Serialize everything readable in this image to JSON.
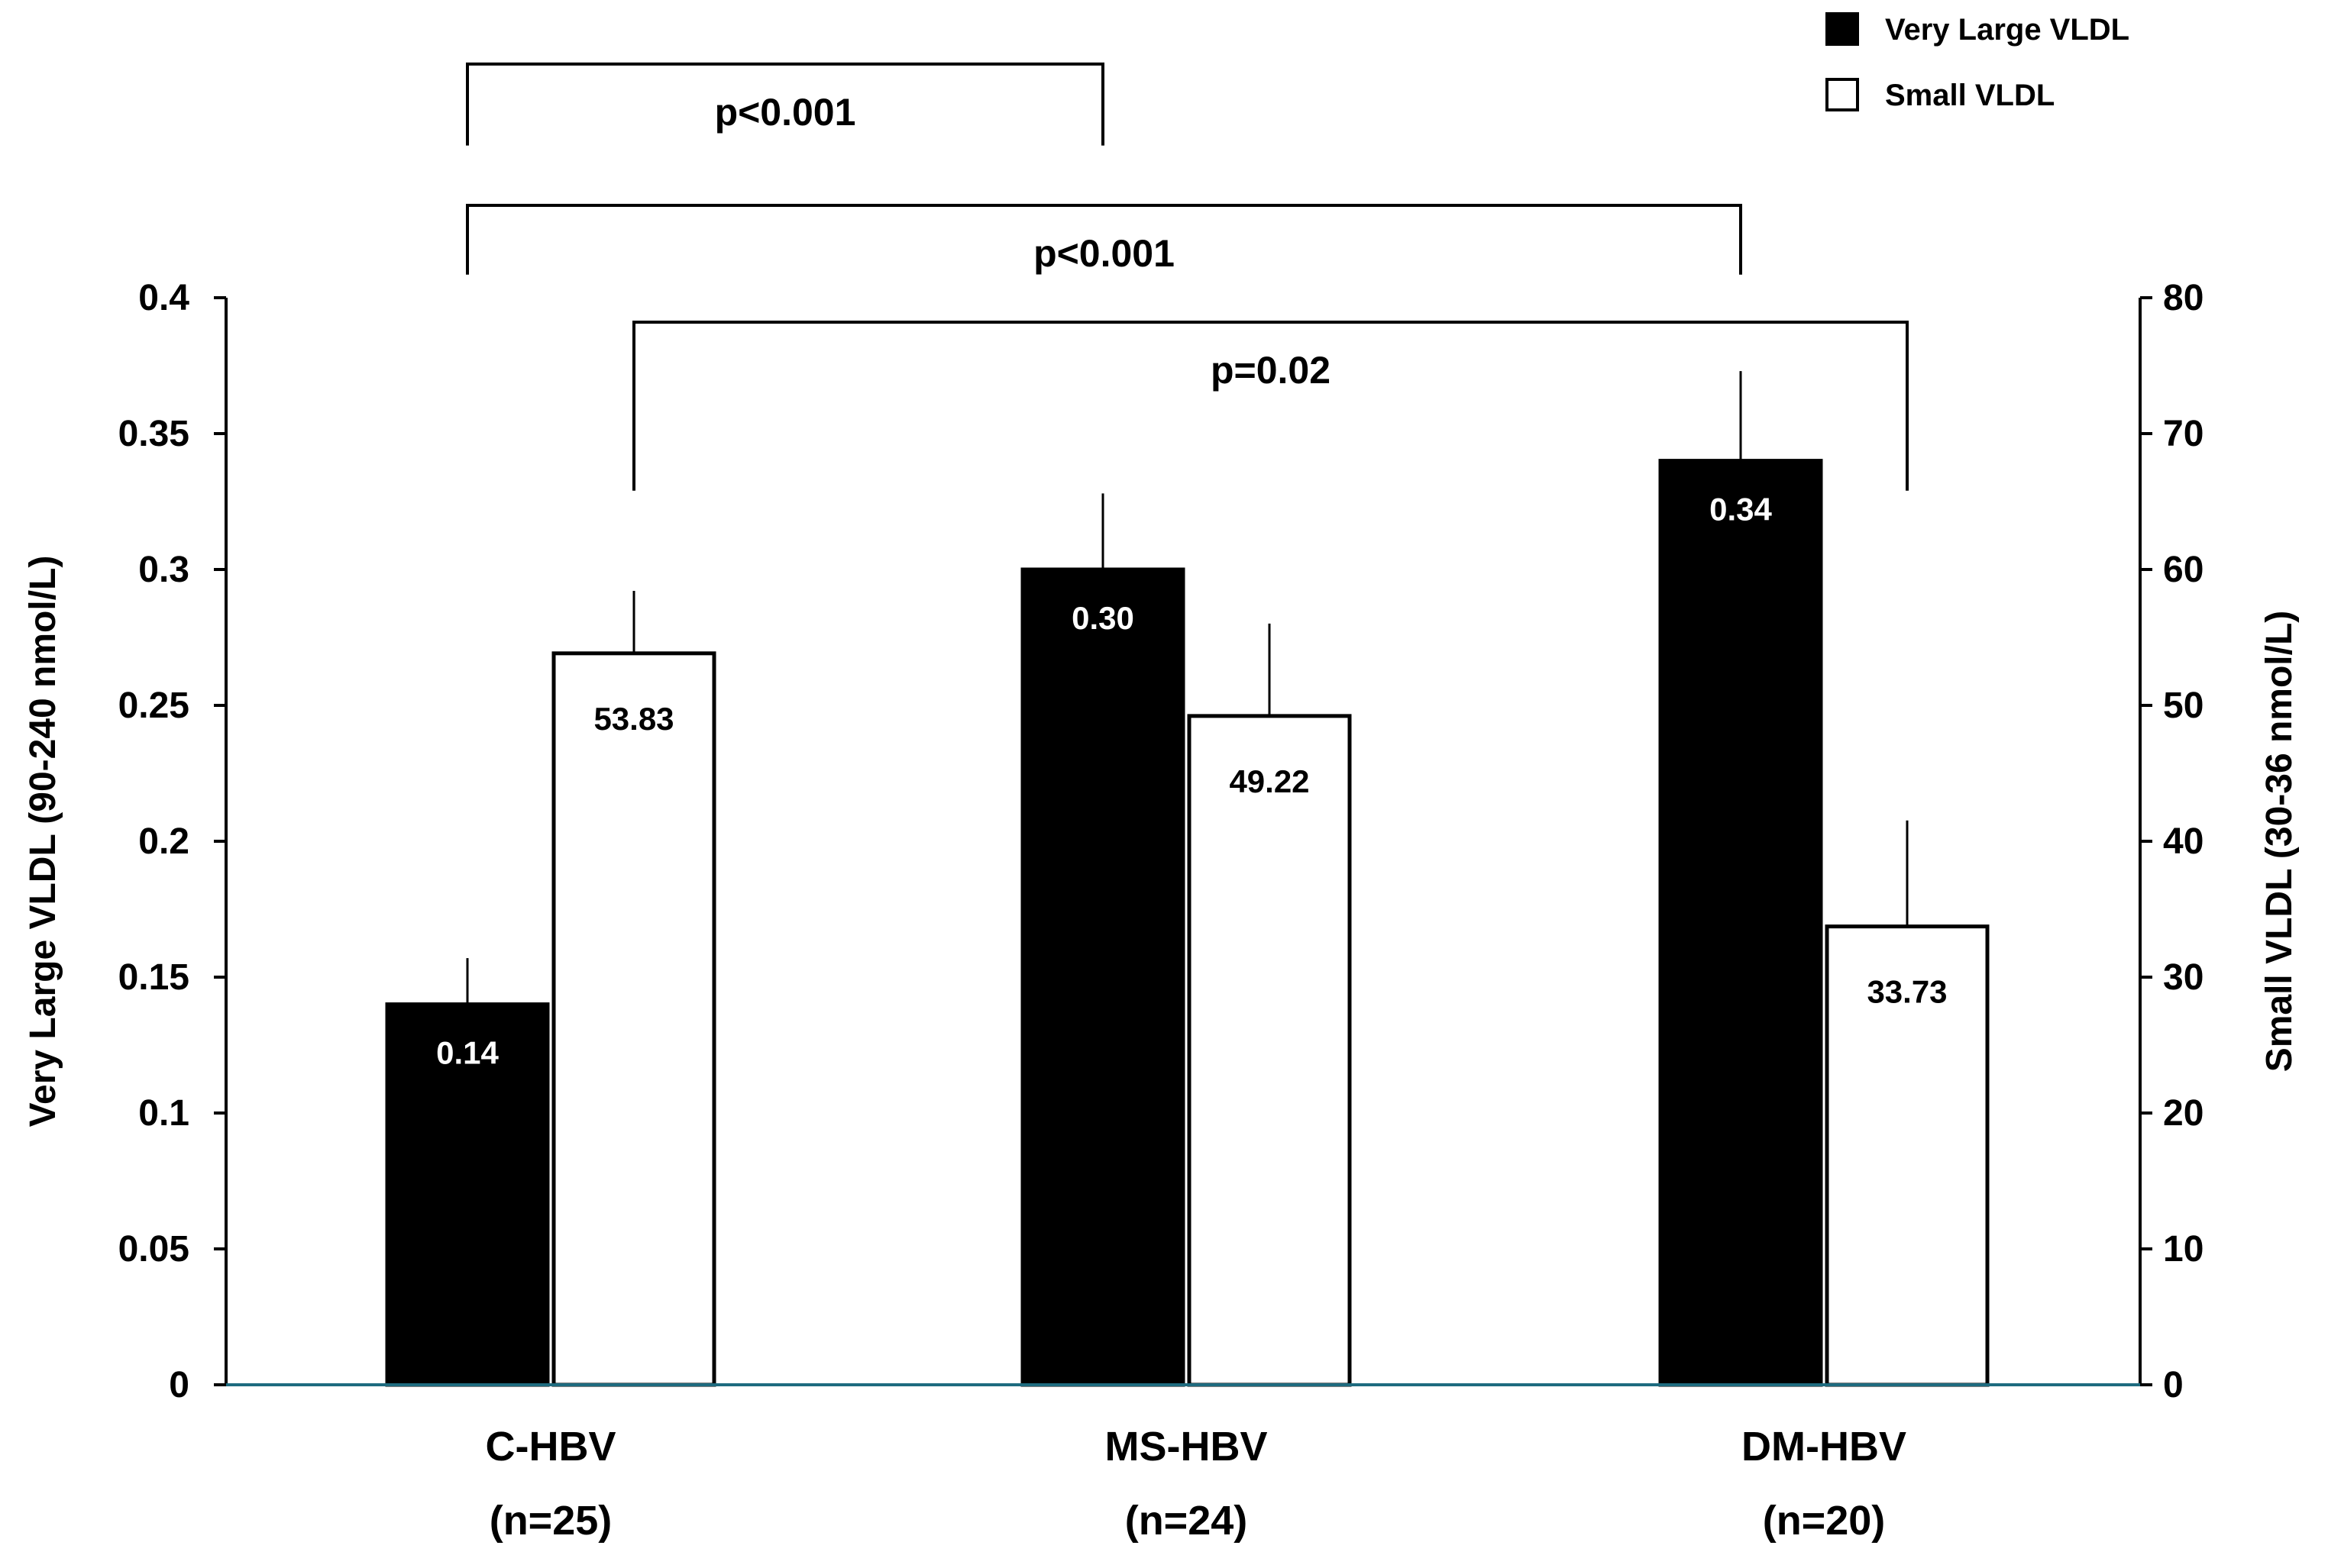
{
  "chart_data": {
    "type": "bar",
    "categories": [
      "C-HBV",
      "MS-HBV",
      "DM-HBV"
    ],
    "category_counts": [
      "(n=25)",
      "(n=24)",
      "(n=20)"
    ],
    "series": [
      {
        "name": "Very Large VLDL",
        "axis": "left",
        "color": "#000000",
        "values": [
          0.14,
          0.3,
          0.34
        ],
        "errors": [
          0.017,
          0.028,
          0.033
        ],
        "labels": [
          "0.14",
          "0.30",
          "0.34"
        ]
      },
      {
        "name": "Small VLDL",
        "axis": "right",
        "color": "#ffffff",
        "values": [
          53.83,
          49.22,
          33.73
        ],
        "errors": [
          4.6,
          6.8,
          7.8
        ],
        "labels": [
          "53.83",
          "49.22",
          "33.73"
        ]
      }
    ],
    "ylabel_left": "Very Large VLDL (90-240 nmol/L)",
    "ylabel_right": "Small VLDL (30-36 nmol/L)",
    "ylim_left": [
      0,
      0.4
    ],
    "ylim_right": [
      0,
      80
    ],
    "yticks_left": [
      "0",
      "0.05",
      "0.1",
      "0.15",
      "0.2",
      "0.25",
      "0.3",
      "0.35",
      "0.4"
    ],
    "yticks_right": [
      "0",
      "10",
      "20",
      "30",
      "40",
      "50",
      "60",
      "70",
      "80"
    ],
    "legend": {
      "position": "top-right",
      "entries": [
        "Very Large VLDL",
        "Small VLDL"
      ]
    },
    "annotations": [
      {
        "label": "p<0.001",
        "from_group": 0,
        "from_series": 0,
        "to_group": 1,
        "to_series": 0,
        "level_left": 0.486,
        "end_left": 0.456
      },
      {
        "label": "p<0.001",
        "from_group": 0,
        "from_series": 0,
        "to_group": 2,
        "to_series": 0,
        "level_left": 0.434,
        "end_left": 0.4085
      },
      {
        "label": "p=0.02",
        "from_group": 0,
        "from_series": 1,
        "to_group": 2,
        "to_series": 1,
        "level_left": 0.391,
        "end_left": 0.329
      }
    ]
  }
}
